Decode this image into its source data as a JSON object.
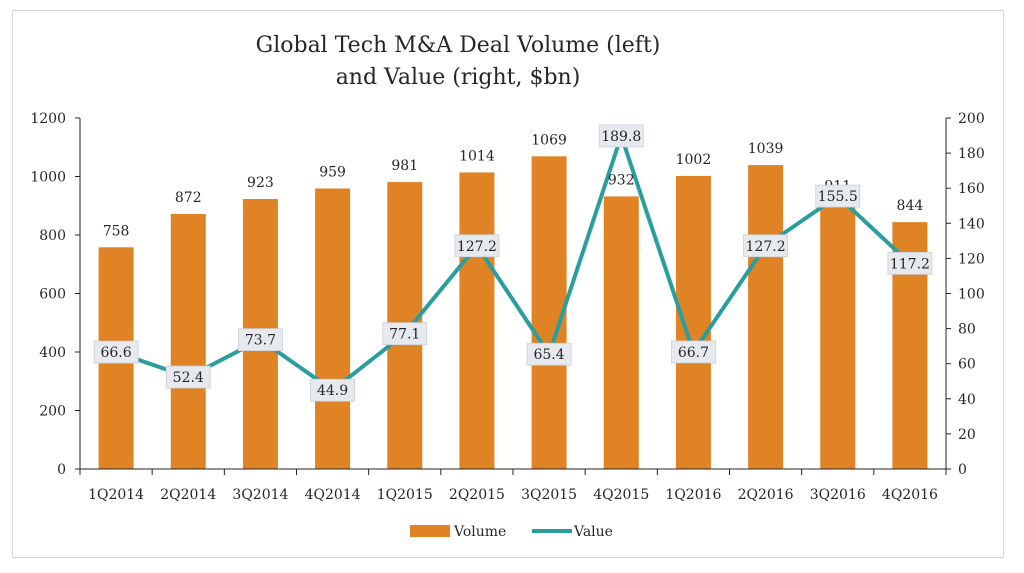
{
  "chart_data": {
    "type": "bar",
    "title_lines": [
      "Global Tech M&A Deal Volume (left)",
      "and Value (right, $bn)"
    ],
    "categories": [
      "1Q2014",
      "2Q2014",
      "3Q2014",
      "4Q2014",
      "1Q2015",
      "2Q2015",
      "3Q2015",
      "4Q2015",
      "1Q2016",
      "2Q2016",
      "3Q2016",
      "4Q2016"
    ],
    "series": [
      {
        "name": "Volume",
        "type": "bar",
        "axis": "left",
        "color": "#E08325",
        "values": [
          758,
          872,
          923,
          959,
          981,
          1014,
          1069,
          932,
          1002,
          1039,
          911,
          844
        ]
      },
      {
        "name": "Value",
        "type": "line",
        "axis": "right",
        "color": "#2A9D9E",
        "values": [
          66.6,
          52.4,
          73.7,
          44.9,
          77.1,
          127.2,
          65.4,
          189.8,
          66.7,
          127.2,
          155.5,
          117.2
        ]
      }
    ],
    "y_left": {
      "min": 0,
      "max": 1200,
      "step": 200
    },
    "y_right": {
      "min": 0,
      "max": 200,
      "step": 20
    },
    "legend_position": "bottom",
    "grid": false
  }
}
